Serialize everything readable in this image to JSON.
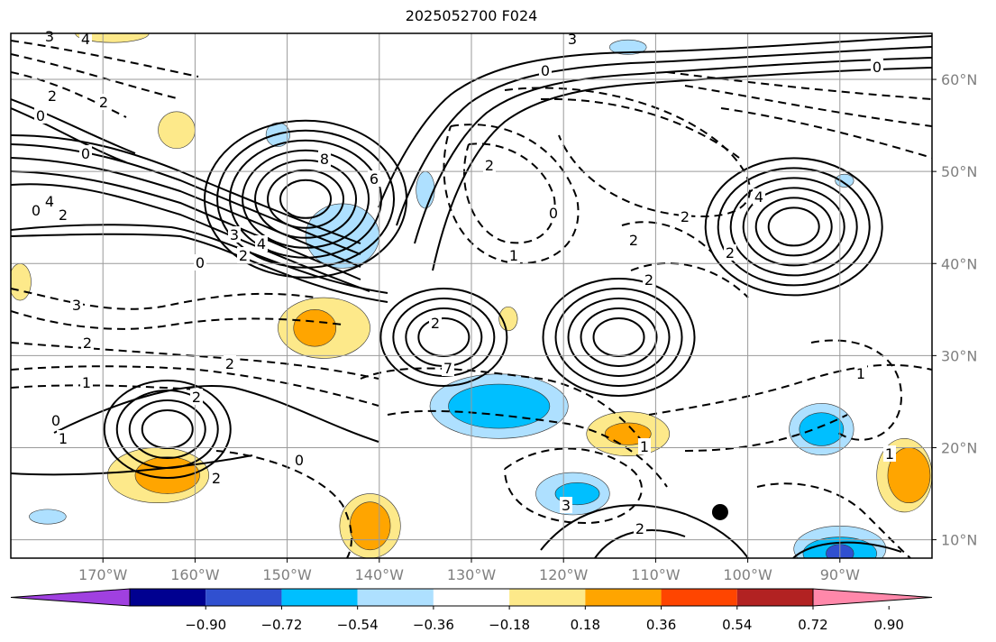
{
  "title": "2025052700 F024",
  "map": {
    "lon_range": [
      -180,
      -80
    ],
    "lat_range": [
      8,
      65
    ],
    "lon_ticks": [
      {
        "lon": -170,
        "label": "170°W"
      },
      {
        "lon": -160,
        "label": "160°W"
      },
      {
        "lon": -150,
        "label": "150°W"
      },
      {
        "lon": -140,
        "label": "140°W"
      },
      {
        "lon": -130,
        "label": "130°W"
      },
      {
        "lon": -120,
        "label": "120°W"
      },
      {
        "lon": -110,
        "label": "110°W"
      },
      {
        "lon": -100,
        "label": "100°W"
      },
      {
        "lon": -90,
        "label": "90°W"
      }
    ],
    "lat_ticks": [
      {
        "lat": 10,
        "label": "10°N"
      },
      {
        "lat": 20,
        "label": "20°N"
      },
      {
        "lat": 30,
        "label": "30°N"
      },
      {
        "lat": 40,
        "label": "40°N"
      },
      {
        "lat": 50,
        "label": "50°N"
      },
      {
        "lat": 60,
        "label": "60°N"
      }
    ],
    "grid": true,
    "marker": {
      "lon": -103,
      "lat": 13
    }
  },
  "colorbar": {
    "colors": [
      "#a040e0",
      "#000090",
      "#3050d0",
      "#00bfff",
      "#aee0ff",
      "#ffffff",
      "#fde98a",
      "#ffa500",
      "#ff4500",
      "#b22222",
      "#ff88aa"
    ],
    "tick_labels": [
      "−0.90",
      "−0.72",
      "−0.54",
      "−0.36",
      "−0.18",
      "0.18",
      "0.36",
      "0.54",
      "0.72",
      "0.90"
    ]
  },
  "contour_labels": [
    "3",
    "4",
    "2",
    "2",
    "0",
    "0",
    "0",
    "8",
    "6",
    "4",
    "2",
    "3",
    "2",
    "4",
    "0",
    "3",
    "2",
    "1",
    "0",
    "1",
    "2",
    "2",
    "0",
    "2",
    "2",
    "1",
    "0",
    "2",
    "2",
    "3",
    "1",
    "2",
    "7",
    "3",
    "4",
    "0",
    "2",
    "2",
    "0",
    "1",
    "2",
    "1"
  ],
  "shaded_regions": [
    {
      "name": "shade-gulf-alaska-blue",
      "lon": -144,
      "lat": 43,
      "rx": 4,
      "ry": 3.5,
      "color": "#aee0ff"
    },
    {
      "name": "shade-north-pacific-blue",
      "lon": -151,
      "lat": 54,
      "rx": 1.3,
      "ry": 1.3,
      "color": "#aee0ff"
    },
    {
      "name": "shade-central-pacific-yellow",
      "lon": -146,
      "lat": 33,
      "rx": 5,
      "ry": 3.3,
      "color": "#fde98a"
    },
    {
      "name": "shade-central-pacific-orange",
      "lon": -147,
      "lat": 33,
      "rx": 2.3,
      "ry": 2,
      "color": "#ffa500"
    },
    {
      "name": "shade-subtropical-blue",
      "lon": -127,
      "lat": 24.5,
      "rx": 7.5,
      "ry": 3.5,
      "color": "#aee0ff"
    },
    {
      "name": "shade-subtropical-cyan",
      "lon": -127,
      "lat": 24.5,
      "rx": 5.5,
      "ry": 2.4,
      "color": "#00bfff"
    },
    {
      "name": "shade-west-pacific-yellow",
      "lon": -164,
      "lat": 17,
      "rx": 5.5,
      "ry": 3,
      "color": "#fde98a"
    },
    {
      "name": "shade-west-pacific-orange",
      "lon": -163,
      "lat": 17,
      "rx": 3.5,
      "ry": 2,
      "color": "#ffa500"
    },
    {
      "name": "shade-south-pacific-yellow",
      "lon": -141,
      "lat": 11.5,
      "rx": 3.3,
      "ry": 3.5,
      "color": "#fde98a"
    },
    {
      "name": "shade-south-pacific-orange",
      "lon": -141,
      "lat": 11.5,
      "rx": 2.2,
      "ry": 2.6,
      "color": "#ffa500"
    },
    {
      "name": "shade-baja-yellow",
      "lon": -113,
      "lat": 21.5,
      "rx": 4.5,
      "ry": 2.4,
      "color": "#fde98a"
    },
    {
      "name": "shade-baja-orange",
      "lon": -113,
      "lat": 21.5,
      "rx": 2.5,
      "ry": 1.2,
      "color": "#ffa500"
    },
    {
      "name": "shade-offshore-blue",
      "lon": -119,
      "lat": 15,
      "rx": 4,
      "ry": 2.3,
      "color": "#aee0ff"
    },
    {
      "name": "shade-offshore-cyan",
      "lon": -118.5,
      "lat": 15,
      "rx": 2.4,
      "ry": 1.2,
      "color": "#00bfff"
    },
    {
      "name": "shade-gulf-mexico-blue",
      "lon": -92,
      "lat": 22,
      "rx": 3.5,
      "ry": 2.8,
      "color": "#aee0ff"
    },
    {
      "name": "shade-gulf-mexico-cyan",
      "lon": -92,
      "lat": 22,
      "rx": 2.4,
      "ry": 1.8,
      "color": "#00bfff"
    },
    {
      "name": "shade-caribbean-yellow",
      "lon": -83,
      "lat": 17,
      "rx": 3,
      "ry": 4,
      "color": "#fde98a"
    },
    {
      "name": "shade-caribbean-orange",
      "lon": -82.5,
      "lat": 17,
      "rx": 2.3,
      "ry": 3,
      "color": "#ffa500"
    },
    {
      "name": "shade-east-pacific-blue",
      "lon": -90,
      "lat": 9,
      "rx": 5,
      "ry": 2.5,
      "color": "#aee0ff"
    },
    {
      "name": "shade-east-pacific-cyan",
      "lon": -90,
      "lat": 8.5,
      "rx": 4,
      "ry": 1.8,
      "color": "#00bfff"
    },
    {
      "name": "shade-east-pacific-indigo",
      "lon": -90,
      "lat": 8.5,
      "rx": 1.5,
      "ry": 1,
      "color": "#3050d0"
    },
    {
      "name": "shade-north-yellow",
      "lon": -169,
      "lat": 65,
      "rx": 4,
      "ry": 1,
      "color": "#fde98a"
    },
    {
      "name": "shade-bering-yellow",
      "lon": -162,
      "lat": 54.5,
      "rx": 2,
      "ry": 2,
      "color": "#fde98a"
    },
    {
      "name": "shade-west-edge-yellow",
      "lon": -179,
      "lat": 38,
      "rx": 1.2,
      "ry": 2,
      "color": "#fde98a"
    },
    {
      "name": "shade-small-yellow",
      "lon": -126,
      "lat": 34,
      "rx": 1,
      "ry": 1.3,
      "color": "#fde98a"
    },
    {
      "name": "shade-small-blue-1",
      "lon": -135,
      "lat": 48,
      "rx": 1,
      "ry": 2,
      "color": "#aee0ff"
    },
    {
      "name": "shade-small-blue-2",
      "lon": -113,
      "lat": 63.5,
      "rx": 2,
      "ry": 0.8,
      "color": "#aee0ff"
    },
    {
      "name": "shade-dateline-blue",
      "lon": -176,
      "lat": 12.5,
      "rx": 2,
      "ry": 0.8,
      "color": "#aee0ff"
    },
    {
      "name": "shade-canada-blue",
      "lon": -89.5,
      "lat": 49,
      "rx": 1,
      "ry": 0.7,
      "color": "#aee0ff"
    }
  ],
  "highs": [
    {
      "name": "high-gulf-alaska",
      "lon": -148,
      "lat": 47,
      "rings": 7
    },
    {
      "name": "high-great-lakes",
      "lon": -95,
      "lat": 44,
      "rings": 6
    },
    {
      "name": "high-subtropical",
      "lon": -133,
      "lat": 32,
      "rings": 4
    },
    {
      "name": "high-west-pacific",
      "lon": -163,
      "lat": 22,
      "rings": 4
    },
    {
      "name": "high-southwest-us",
      "lon": -114,
      "lat": 32,
      "rings": 5
    }
  ]
}
